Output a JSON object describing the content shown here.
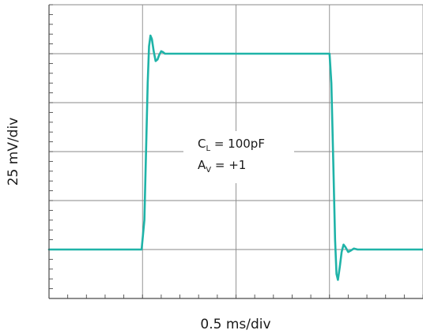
{
  "chart_data": {
    "type": "line",
    "title": "",
    "xlabel": "0.5 ms/div",
    "ylabel": "25 mV/div",
    "x_divisions": 4,
    "y_divisions": 6,
    "xlim": [
      0,
      4
    ],
    "ylim": [
      -1,
      5
    ],
    "grid": true,
    "series": [
      {
        "color": "#1fb3a8",
        "points": [
          [
            0.0,
            0.0
          ],
          [
            0.99,
            0.0
          ],
          [
            1.02,
            0.6
          ],
          [
            1.04,
            2.2
          ],
          [
            1.055,
            3.4
          ],
          [
            1.07,
            4.15
          ],
          [
            1.085,
            4.37
          ],
          [
            1.1,
            4.3
          ],
          [
            1.12,
            4.05
          ],
          [
            1.14,
            3.85
          ],
          [
            1.16,
            3.88
          ],
          [
            1.18,
            3.98
          ],
          [
            1.2,
            4.05
          ],
          [
            1.22,
            4.03
          ],
          [
            1.24,
            4.0
          ],
          [
            1.3,
            4.0
          ],
          [
            3.0,
            4.0
          ],
          [
            3.02,
            3.4
          ],
          [
            3.04,
            1.8
          ],
          [
            3.06,
            0.2
          ],
          [
            3.075,
            -0.5
          ],
          [
            3.09,
            -0.62
          ],
          [
            3.11,
            -0.35
          ],
          [
            3.13,
            -0.05
          ],
          [
            3.15,
            0.1
          ],
          [
            3.17,
            0.05
          ],
          [
            3.2,
            -0.05
          ],
          [
            3.23,
            -0.02
          ],
          [
            3.26,
            0.02
          ],
          [
            3.3,
            0.0
          ],
          [
            4.0,
            0.0
          ]
        ]
      }
    ],
    "annotations": {
      "cl_main": "C",
      "cl_sub": "L",
      "cl_value": " = 100pF",
      "av_main": "A",
      "av_sub": "V",
      "av_value": " = +1"
    }
  }
}
